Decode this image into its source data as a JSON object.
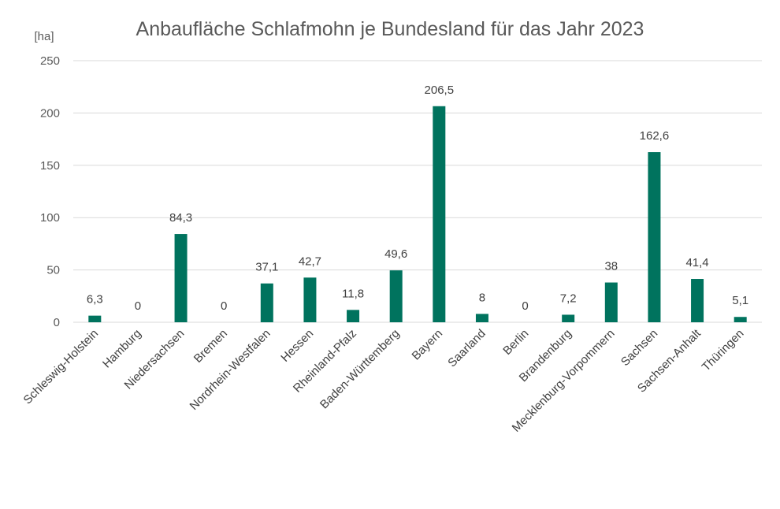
{
  "chart_data": {
    "type": "bar",
    "title": "Anbaufläche Schlafmohn je Bundesland für das Jahr 2023",
    "ylabel": "[ha]",
    "xlabel": "",
    "ylim": [
      0,
      250
    ],
    "yticks": [
      0,
      50,
      100,
      150,
      200,
      250
    ],
    "grid": true,
    "bar_color": "#00735E",
    "categories": [
      "Schleswig-Holstein",
      "Hamburg",
      "Niedersachsen",
      "Bremen",
      "Nordrhein-Westfalen",
      "Hessen",
      "Rheinland-Pfalz",
      "Baden-Württemberg",
      "Bayern",
      "Saarland",
      "Berlin",
      "Brandenburg",
      "Mecklenburg-Vorpommern",
      "Sachsen",
      "Sachsen-Anhalt",
      "Thüringen"
    ],
    "values": [
      6.3,
      0,
      84.3,
      0,
      37.1,
      42.7,
      11.8,
      49.6,
      206.5,
      8,
      0,
      7.2,
      38,
      162.6,
      41.4,
      5.1
    ],
    "data_labels": [
      "6,3",
      "0",
      "84,3",
      "0",
      "37,1",
      "42,7",
      "11,8",
      "49,6",
      "206,5",
      "8",
      "0",
      "7,2",
      "38",
      "162,6",
      "41,4",
      "5,1"
    ]
  }
}
